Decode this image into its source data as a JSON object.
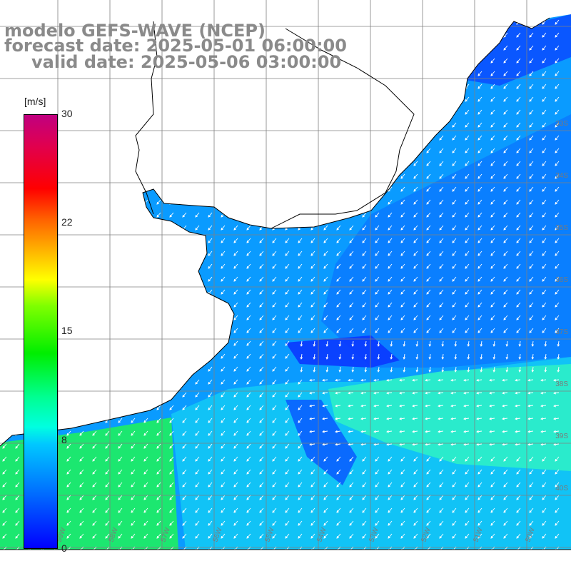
{
  "title": {
    "line1": "modelo GEFS-WAVE (NCEP)",
    "line2": "forecast date: 2025-05-01 06:00:00",
    "line3": "valid date: 2025-05-06 03:00:00"
  },
  "colorbar": {
    "unit": "[m/s]",
    "ticks": [
      "30",
      "22",
      "15",
      "8",
      "0"
    ],
    "colors": [
      "#0000ff",
      "#00c8ff",
      "#00ff90",
      "#00ee00",
      "#ffff00",
      "#ff6000",
      "#ff0000",
      "#c00080"
    ]
  },
  "map": {
    "land_color": "#ffffff",
    "grid_color": "#808080",
    "coast_color": "#000000",
    "arrow_color": "#ffffff",
    "lat_labels": [
      "33S",
      "34S",
      "35S",
      "36S",
      "37S",
      "38S",
      "39S",
      "40S"
    ],
    "lon_labels": [
      "59W",
      "58W",
      "57W",
      "56W",
      "55W",
      "54W",
      "53W",
      "52W",
      "51W",
      "50W"
    ]
  }
}
